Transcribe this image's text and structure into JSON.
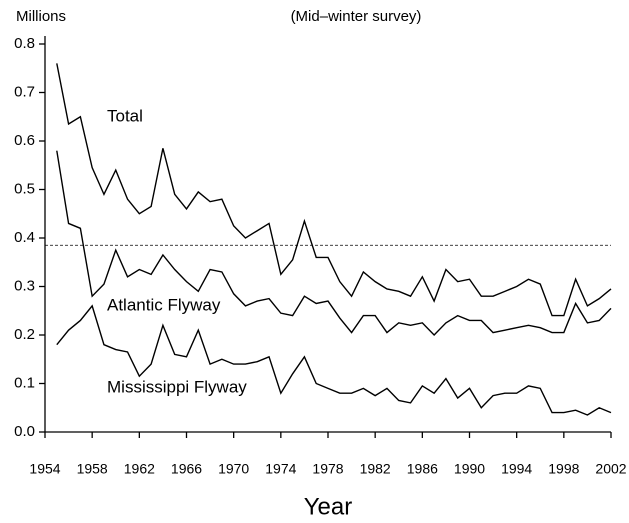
{
  "chart_data": {
    "type": "line",
    "title": "(Mid–winter survey)",
    "y_label": "Millions",
    "x_label": "Year",
    "x": [
      1955,
      1956,
      1957,
      1958,
      1959,
      1960,
      1961,
      1962,
      1963,
      1964,
      1965,
      1966,
      1967,
      1968,
      1969,
      1970,
      1971,
      1972,
      1973,
      1974,
      1975,
      1976,
      1977,
      1978,
      1979,
      1980,
      1981,
      1982,
      1983,
      1984,
      1985,
      1986,
      1987,
      1988,
      1989,
      1990,
      1991,
      1992,
      1993,
      1994,
      1995,
      1996,
      1997,
      1998,
      1999,
      2000,
      2001,
      2002
    ],
    "series": [
      {
        "name": "Total",
        "color": "#000000",
        "values": [
          0.76,
          0.635,
          0.65,
          0.545,
          0.49,
          0.54,
          0.48,
          0.45,
          0.465,
          0.585,
          0.49,
          0.46,
          0.495,
          0.475,
          0.48,
          0.425,
          0.4,
          0.415,
          0.43,
          0.325,
          0.355,
          0.435,
          0.36,
          0.36,
          0.31,
          0.28,
          0.33,
          0.31,
          0.295,
          0.29,
          0.28,
          0.32,
          0.27,
          0.335,
          0.31,
          0.315,
          0.28,
          0.28,
          0.29,
          0.3,
          0.315,
          0.305,
          0.24,
          0.24,
          0.315,
          0.26,
          0.275,
          0.295
        ]
      },
      {
        "name": "Atlantic Flyway",
        "color": "#000000",
        "values": [
          0.58,
          0.43,
          0.42,
          0.28,
          0.305,
          0.375,
          0.32,
          0.335,
          0.325,
          0.365,
          0.335,
          0.31,
          0.29,
          0.335,
          0.33,
          0.285,
          0.26,
          0.27,
          0.275,
          0.245,
          0.24,
          0.28,
          0.265,
          0.27,
          0.235,
          0.205,
          0.24,
          0.24,
          0.205,
          0.225,
          0.22,
          0.225,
          0.2,
          0.225,
          0.24,
          0.23,
          0.23,
          0.205,
          0.21,
          0.215,
          0.22,
          0.215,
          0.205,
          0.205,
          0.265,
          0.225,
          0.23,
          0.255
        ]
      },
      {
        "name": "Mississippi Flyway",
        "color": "#000000",
        "values": [
          0.18,
          0.21,
          0.23,
          0.26,
          0.18,
          0.17,
          0.165,
          0.115,
          0.14,
          0.22,
          0.16,
          0.155,
          0.21,
          0.14,
          0.15,
          0.14,
          0.14,
          0.145,
          0.155,
          0.08,
          0.12,
          0.155,
          0.1,
          0.09,
          0.08,
          0.08,
          0.09,
          0.075,
          0.09,
          0.065,
          0.06,
          0.095,
          0.08,
          0.11,
          0.07,
          0.09,
          0.05,
          0.075,
          0.08,
          0.08,
          0.095,
          0.09,
          0.04,
          0.04,
          0.045,
          0.035,
          0.05,
          0.04
        ]
      }
    ],
    "reference_line": 0.385,
    "xlim": [
      1954,
      2002
    ],
    "xticks": [
      1954,
      1958,
      1962,
      1966,
      1970,
      1974,
      1978,
      1982,
      1986,
      1990,
      1994,
      1998,
      2002
    ],
    "ylim": [
      0,
      0.8
    ],
    "yticks": [
      {
        "value": 0,
        "label": "0.0"
      },
      0.1,
      0.2,
      0.3,
      0.4,
      0.5,
      0.6,
      0.7,
      0.8
    ]
  }
}
